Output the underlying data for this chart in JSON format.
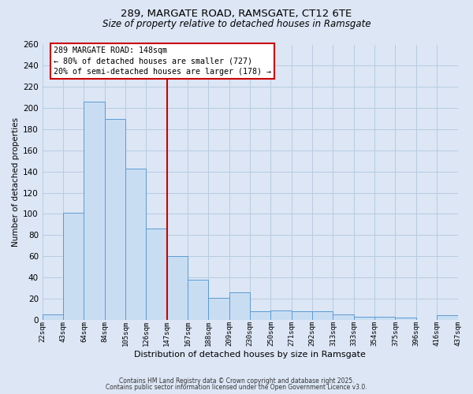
{
  "title_line1": "289, MARGATE ROAD, RAMSGATE, CT12 6TE",
  "title_line2": "Size of property relative to detached houses in Ramsgate",
  "xlabel": "Distribution of detached houses by size in Ramsgate",
  "ylabel": "Number of detached properties",
  "bin_labels": [
    "22sqm",
    "43sqm",
    "64sqm",
    "84sqm",
    "105sqm",
    "126sqm",
    "147sqm",
    "167sqm",
    "188sqm",
    "209sqm",
    "230sqm",
    "250sqm",
    "271sqm",
    "292sqm",
    "313sqm",
    "333sqm",
    "354sqm",
    "375sqm",
    "396sqm",
    "416sqm",
    "437sqm"
  ],
  "bar_heights": [
    5,
    101,
    206,
    190,
    143,
    86,
    60,
    38,
    21,
    26,
    8,
    9,
    8,
    8,
    5,
    3,
    3,
    2,
    0,
    4
  ],
  "bar_color": "#c9ddf2",
  "bar_edge_color": "#5b9bd5",
  "vline_x": 6,
  "vline_color": "#cc0000",
  "annotation_line1": "289 MARGATE ROAD: 148sqm",
  "annotation_line2": "← 80% of detached houses are smaller (727)",
  "annotation_line3": "20% of semi-detached houses are larger (178) →",
  "annotation_box_facecolor": "#ffffff",
  "annotation_box_edgecolor": "#cc0000",
  "grid_color": "#b8cce0",
  "bg_color": "#dce6f5",
  "ylim_max": 260,
  "yticks": [
    0,
    20,
    40,
    60,
    80,
    100,
    120,
    140,
    160,
    180,
    200,
    220,
    240,
    260
  ],
  "footer_line1": "Contains HM Land Registry data © Crown copyright and database right 2025.",
  "footer_line2": "Contains public sector information licensed under the Open Government Licence v3.0."
}
